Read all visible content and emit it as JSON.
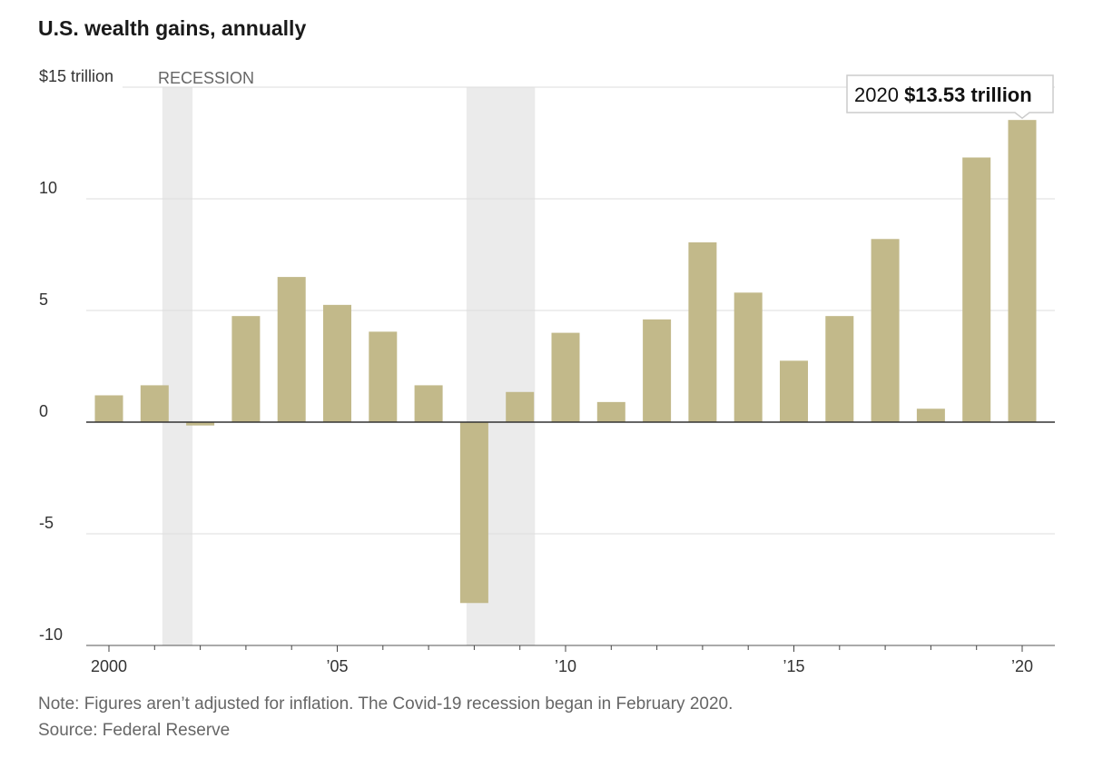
{
  "header": {
    "title": "U.S. wealth gains, annually"
  },
  "footer": {
    "note": "Note: Figures aren’t adjusted for inflation. The Covid-19 recession began in February 2020.",
    "source": "Source: Federal Reserve"
  },
  "chart_data": {
    "type": "bar",
    "title": "U.S. wealth gains, annually",
    "unit_label": "$15 trillion",
    "x": [
      2000,
      2001,
      2002,
      2003,
      2004,
      2005,
      2006,
      2007,
      2008,
      2009,
      2010,
      2011,
      2012,
      2013,
      2014,
      2015,
      2016,
      2017,
      2018,
      2019,
      2020
    ],
    "values": [
      1.2,
      1.65,
      -0.15,
      4.75,
      6.5,
      5.25,
      4.05,
      1.65,
      -8.1,
      1.35,
      4.0,
      0.9,
      4.6,
      8.05,
      5.8,
      2.75,
      4.75,
      8.2,
      0.6,
      11.85,
      13.53
    ],
    "ylim": [
      -10,
      15
    ],
    "yticks": [
      {
        "value": 15,
        "label": "$15 trillion"
      },
      {
        "value": 10,
        "label": "10"
      },
      {
        "value": 5,
        "label": "5"
      },
      {
        "value": 0,
        "label": "0"
      },
      {
        "value": -5,
        "label": "-5"
      },
      {
        "value": -10,
        "label": "-10"
      }
    ],
    "xticks": [
      {
        "value": 2000,
        "label": "2000"
      },
      {
        "value": 2005,
        "label": "’05"
      },
      {
        "value": 2010,
        "label": "’10"
      },
      {
        "value": 2015,
        "label": "’15"
      },
      {
        "value": 2020,
        "label": "’20"
      }
    ],
    "recessions": [
      {
        "start": 2001.17,
        "end": 2001.83
      },
      {
        "start": 2007.83,
        "end": 2009.33
      }
    ],
    "recession_label": "RECESSION",
    "annotation": {
      "year_label": "2020",
      "value_label": "$13.53 trillion"
    },
    "grid": true,
    "colors": {
      "bar": "#c2b98a",
      "recession": "#ebebeb",
      "grid": "#dddddd",
      "zero_line": "#333333"
    }
  }
}
